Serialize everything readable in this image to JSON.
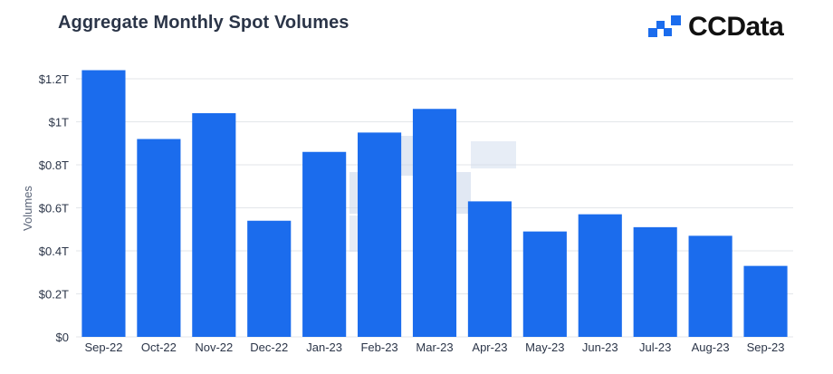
{
  "header": {
    "title": "Aggregate Monthly Spot Volumes",
    "brand_name": "CCData"
  },
  "colors": {
    "bar": "#1b6ced",
    "grid": "#e3e6ea",
    "axis_text": "#2b3548",
    "brand_blue": "#1b6ced",
    "watermark": "#c9d6ea"
  },
  "chart_data": {
    "type": "bar",
    "title": "Aggregate Monthly Spot Volumes",
    "xlabel": "",
    "ylabel": "Volumes",
    "ylim": [
      0,
      1.2
    ],
    "y_ticks": [
      {
        "value": 0,
        "label": "$0"
      },
      {
        "value": 0.2,
        "label": "$0.2T"
      },
      {
        "value": 0.4,
        "label": "$0.4T"
      },
      {
        "value": 0.6,
        "label": "$0.6T"
      },
      {
        "value": 0.8,
        "label": "$0.8T"
      },
      {
        "value": 1.0,
        "label": "$1T"
      },
      {
        "value": 1.2,
        "label": "$1.2T"
      }
    ],
    "grid": true,
    "legend": "none",
    "categories": [
      "Sep-22",
      "Oct-22",
      "Nov-22",
      "Dec-22",
      "Jan-23",
      "Feb-23",
      "Mar-23",
      "Apr-23",
      "May-23",
      "Jun-23",
      "Jul-23",
      "Aug-23",
      "Sep-23"
    ],
    "values": [
      1.24,
      0.92,
      1.04,
      0.54,
      0.86,
      0.95,
      1.06,
      0.63,
      0.49,
      0.57,
      0.51,
      0.47,
      0.33
    ]
  }
}
